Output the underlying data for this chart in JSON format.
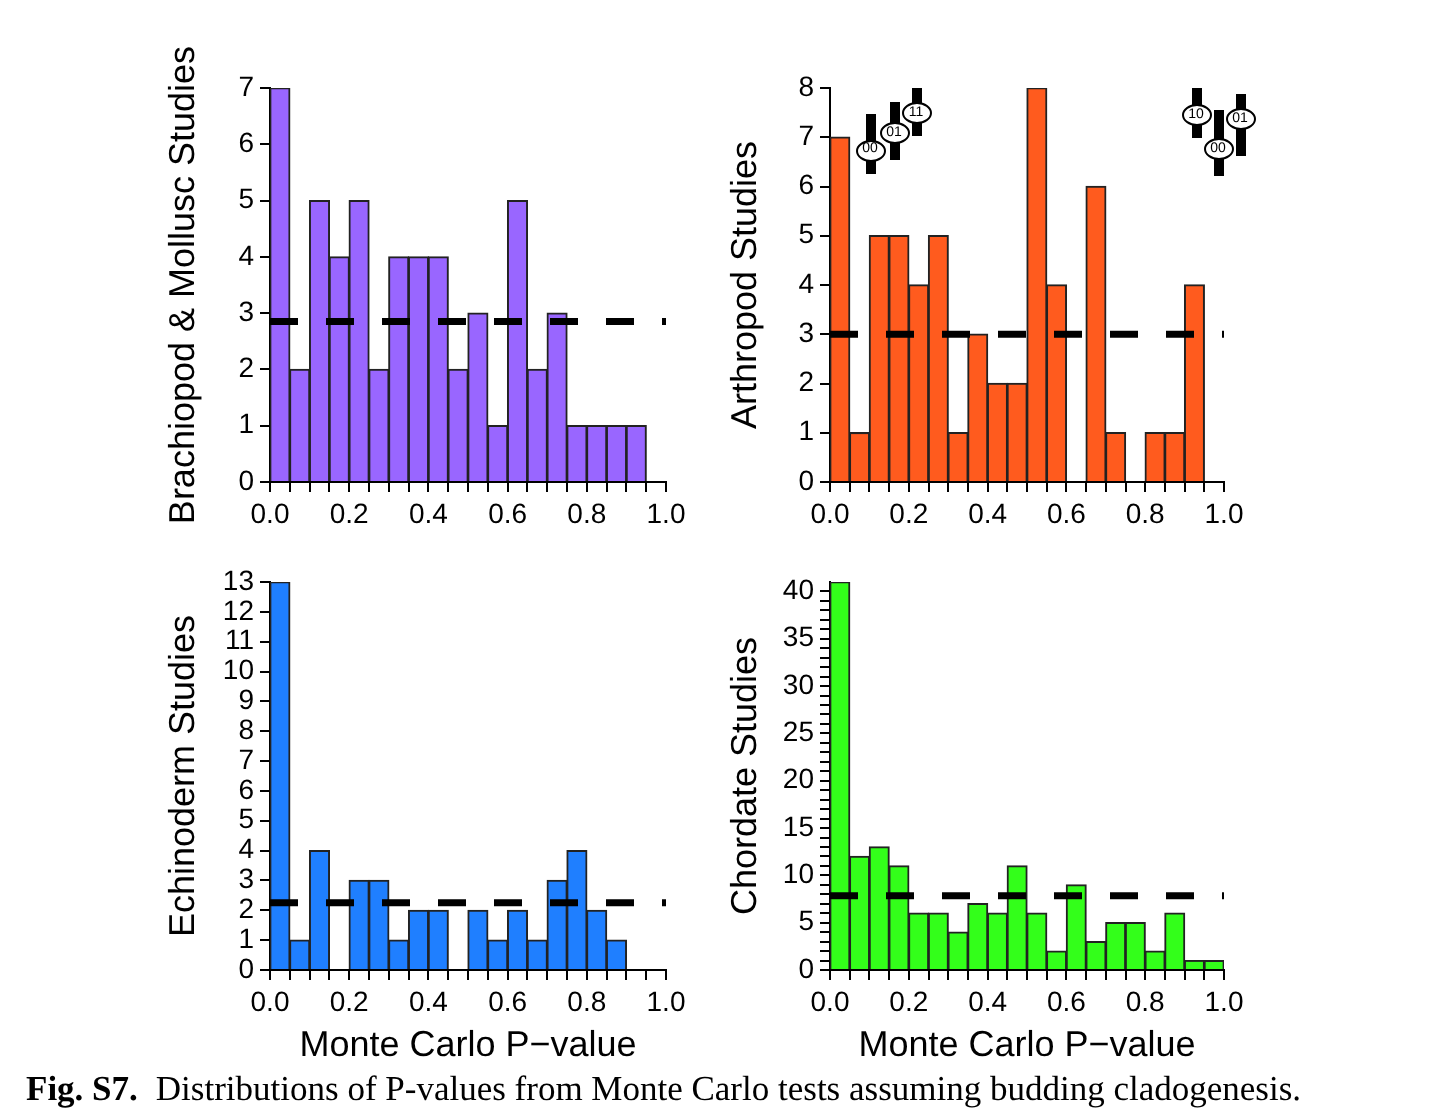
{
  "chart_data": [
    {
      "type": "histogram",
      "ylabel": "Brachiopod & Mollusc Studies",
      "bins": [
        0,
        0.05,
        0.1,
        0.15,
        0.2,
        0.25,
        0.3,
        0.35,
        0.4,
        0.45,
        0.5,
        0.55,
        0.6,
        0.65,
        0.7,
        0.75,
        0.8,
        0.85,
        0.9,
        0.95,
        1
      ],
      "values": [
        7,
        2,
        5,
        4,
        5,
        2,
        4,
        4,
        4,
        2,
        3,
        1,
        5,
        2,
        3,
        1,
        1,
        1,
        1,
        0
      ],
      "color": "#9966ff",
      "xlim": [
        0,
        1
      ],
      "xticks": [
        {
          "value": 0,
          "label": "0.0"
        },
        {
          "value": 0.05,
          "label": null
        },
        {
          "value": 0.1,
          "label": null
        },
        {
          "value": 0.15,
          "label": null
        },
        0.2,
        {
          "value": 0.25,
          "label": null
        },
        {
          "value": 0.3,
          "label": null
        },
        {
          "value": 0.35,
          "label": null
        },
        0.4,
        {
          "value": 0.45,
          "label": null
        },
        {
          "value": 0.5,
          "label": null
        },
        {
          "value": 0.55,
          "label": null
        },
        0.6,
        {
          "value": 0.65,
          "label": null
        },
        {
          "value": 0.7,
          "label": null
        },
        {
          "value": 0.75,
          "label": null
        },
        0.8,
        {
          "value": 0.85,
          "label": null
        },
        {
          "value": 0.9,
          "label": null
        },
        {
          "value": 0.95,
          "label": null
        },
        {
          "value": 1,
          "label": "1.0"
        }
      ],
      "ylim": [
        0,
        7
      ],
      "yticks": [
        0,
        1,
        2,
        3,
        4,
        5,
        6,
        7
      ],
      "ref_lines": [
        {
          "axis": "y",
          "value": 2.85,
          "color": "#000000",
          "line_style": "dashed"
        }
      ],
      "grid": false,
      "legend": false
    },
    {
      "type": "histogram",
      "ylabel": "Arthropod Studies",
      "bins": [
        0,
        0.05,
        0.1,
        0.15,
        0.2,
        0.25,
        0.3,
        0.35,
        0.4,
        0.45,
        0.5,
        0.55,
        0.6,
        0.65,
        0.7,
        0.75,
        0.8,
        0.85,
        0.9,
        0.95,
        1
      ],
      "values": [
        7,
        1,
        5,
        5,
        4,
        5,
        1,
        3,
        2,
        2,
        8,
        4,
        0,
        6,
        1,
        0,
        1,
        1,
        4,
        0
      ],
      "color": "#ff5b1e",
      "xlim": [
        0,
        1
      ],
      "xticks": [
        {
          "value": 0,
          "label": "0.0"
        },
        {
          "value": 0.05,
          "label": null
        },
        {
          "value": 0.1,
          "label": null
        },
        {
          "value": 0.15,
          "label": null
        },
        0.2,
        {
          "value": 0.25,
          "label": null
        },
        {
          "value": 0.3,
          "label": null
        },
        {
          "value": 0.35,
          "label": null
        },
        0.4,
        {
          "value": 0.45,
          "label": null
        },
        {
          "value": 0.5,
          "label": null
        },
        {
          "value": 0.55,
          "label": null
        },
        0.6,
        {
          "value": 0.65,
          "label": null
        },
        {
          "value": 0.7,
          "label": null
        },
        {
          "value": 0.75,
          "label": null
        },
        0.8,
        {
          "value": 0.85,
          "label": null
        },
        {
          "value": 0.9,
          "label": null
        },
        {
          "value": 0.95,
          "label": null
        },
        {
          "value": 1,
          "label": "1.0"
        }
      ],
      "ylim": [
        0,
        8
      ],
      "yticks": [
        0,
        1,
        2,
        3,
        4,
        5,
        6,
        7,
        8
      ],
      "ref_lines": [
        {
          "axis": "y",
          "value": 3,
          "color": "#000000",
          "line_style": "dashed"
        }
      ],
      "annotations": [
        "00",
        "01",
        "11",
        "10",
        "00",
        "01"
      ],
      "grid": false,
      "legend": false
    },
    {
      "type": "histogram",
      "xlabel": "Monte Carlo P−value",
      "ylabel": "Echinoderm Studies",
      "bins": [
        0,
        0.05,
        0.1,
        0.15,
        0.2,
        0.25,
        0.3,
        0.35,
        0.4,
        0.45,
        0.5,
        0.55,
        0.6,
        0.65,
        0.7,
        0.75,
        0.8,
        0.85,
        0.9,
        0.95,
        1
      ],
      "values": [
        13,
        1,
        4,
        0,
        3,
        3,
        1,
        2,
        2,
        0,
        2,
        1,
        2,
        1,
        3,
        4,
        2,
        1,
        0,
        0
      ],
      "color": "#1f7fff",
      "xlim": [
        0,
        1
      ],
      "xticks": [
        {
          "value": 0,
          "label": "0.0"
        },
        {
          "value": 0.05,
          "label": null
        },
        {
          "value": 0.1,
          "label": null
        },
        {
          "value": 0.15,
          "label": null
        },
        0.2,
        {
          "value": 0.25,
          "label": null
        },
        {
          "value": 0.3,
          "label": null
        },
        {
          "value": 0.35,
          "label": null
        },
        0.4,
        {
          "value": 0.45,
          "label": null
        },
        {
          "value": 0.5,
          "label": null
        },
        {
          "value": 0.55,
          "label": null
        },
        0.6,
        {
          "value": 0.65,
          "label": null
        },
        {
          "value": 0.7,
          "label": null
        },
        {
          "value": 0.75,
          "label": null
        },
        0.8,
        {
          "value": 0.85,
          "label": null
        },
        {
          "value": 0.9,
          "label": null
        },
        {
          "value": 0.95,
          "label": null
        },
        {
          "value": 1,
          "label": "1.0"
        }
      ],
      "ylim": [
        0,
        13
      ],
      "yticks": [
        0,
        1,
        2,
        3,
        4,
        5,
        6,
        7,
        8,
        9,
        10,
        11,
        12,
        13
      ],
      "ref_lines": [
        {
          "axis": "y",
          "value": 2.25,
          "color": "#000000",
          "line_style": "dashed"
        }
      ],
      "grid": false,
      "legend": false
    },
    {
      "type": "histogram",
      "xlabel": "Monte Carlo P−value",
      "ylabel": "Chordate Studies",
      "bins": [
        0,
        0.05,
        0.1,
        0.15,
        0.2,
        0.25,
        0.3,
        0.35,
        0.4,
        0.45,
        0.5,
        0.55,
        0.6,
        0.65,
        0.7,
        0.75,
        0.8,
        0.85,
        0.9,
        0.95,
        1
      ],
      "values": [
        41,
        12,
        13,
        11,
        6,
        6,
        4,
        7,
        6,
        11,
        6,
        2,
        9,
        3,
        5,
        5,
        2,
        6,
        1,
        1
      ],
      "color": "#33ff1a",
      "xlim": [
        0,
        1
      ],
      "xticks": [
        {
          "value": 0,
          "label": "0.0"
        },
        {
          "value": 0.05,
          "label": null
        },
        {
          "value": 0.1,
          "label": null
        },
        {
          "value": 0.15,
          "label": null
        },
        0.2,
        {
          "value": 0.25,
          "label": null
        },
        {
          "value": 0.3,
          "label": null
        },
        {
          "value": 0.35,
          "label": null
        },
        0.4,
        {
          "value": 0.45,
          "label": null
        },
        {
          "value": 0.5,
          "label": null
        },
        {
          "value": 0.55,
          "label": null
        },
        0.6,
        {
          "value": 0.65,
          "label": null
        },
        {
          "value": 0.7,
          "label": null
        },
        {
          "value": 0.75,
          "label": null
        },
        0.8,
        {
          "value": 0.85,
          "label": null
        },
        {
          "value": 0.9,
          "label": null
        },
        {
          "value": 0.95,
          "label": null
        },
        {
          "value": 1,
          "label": "1.0"
        }
      ],
      "ylim": [
        0,
        41
      ],
      "yticks": [
        0,
        {
          "value": 1,
          "label": null
        },
        {
          "value": 2,
          "label": null
        },
        {
          "value": 3,
          "label": null
        },
        {
          "value": 4,
          "label": null
        },
        5,
        {
          "value": 6,
          "label": null
        },
        {
          "value": 7,
          "label": null
        },
        {
          "value": 8,
          "label": null
        },
        {
          "value": 9,
          "label": null
        },
        10,
        {
          "value": 11,
          "label": null
        },
        {
          "value": 12,
          "label": null
        },
        {
          "value": 13,
          "label": null
        },
        {
          "value": 14,
          "label": null
        },
        15,
        {
          "value": 16,
          "label": null
        },
        {
          "value": 17,
          "label": null
        },
        {
          "value": 18,
          "label": null
        },
        {
          "value": 19,
          "label": null
        },
        20,
        {
          "value": 21,
          "label": null
        },
        {
          "value": 22,
          "label": null
        },
        {
          "value": 23,
          "label": null
        },
        {
          "value": 24,
          "label": null
        },
        25,
        {
          "value": 26,
          "label": null
        },
        {
          "value": 27,
          "label": null
        },
        {
          "value": 28,
          "label": null
        },
        {
          "value": 29,
          "label": null
        },
        30,
        {
          "value": 31,
          "label": null
        },
        {
          "value": 32,
          "label": null
        },
        {
          "value": 33,
          "label": null
        },
        {
          "value": 34,
          "label": null
        },
        35,
        {
          "value": 36,
          "label": null
        },
        {
          "value": 37,
          "label": null
        },
        {
          "value": 38,
          "label": null
        },
        {
          "value": 39,
          "label": null
        },
        40
      ],
      "ref_lines": [
        {
          "axis": "y",
          "value": 7.85,
          "color": "#000000",
          "line_style": "dashed"
        }
      ],
      "annotations": [
        "Fig. S7.",
        "Distributions of P-values from Monte Carlo tests assuming budding cladogenesis."
      ],
      "grid": false,
      "legend": false
    }
  ]
}
